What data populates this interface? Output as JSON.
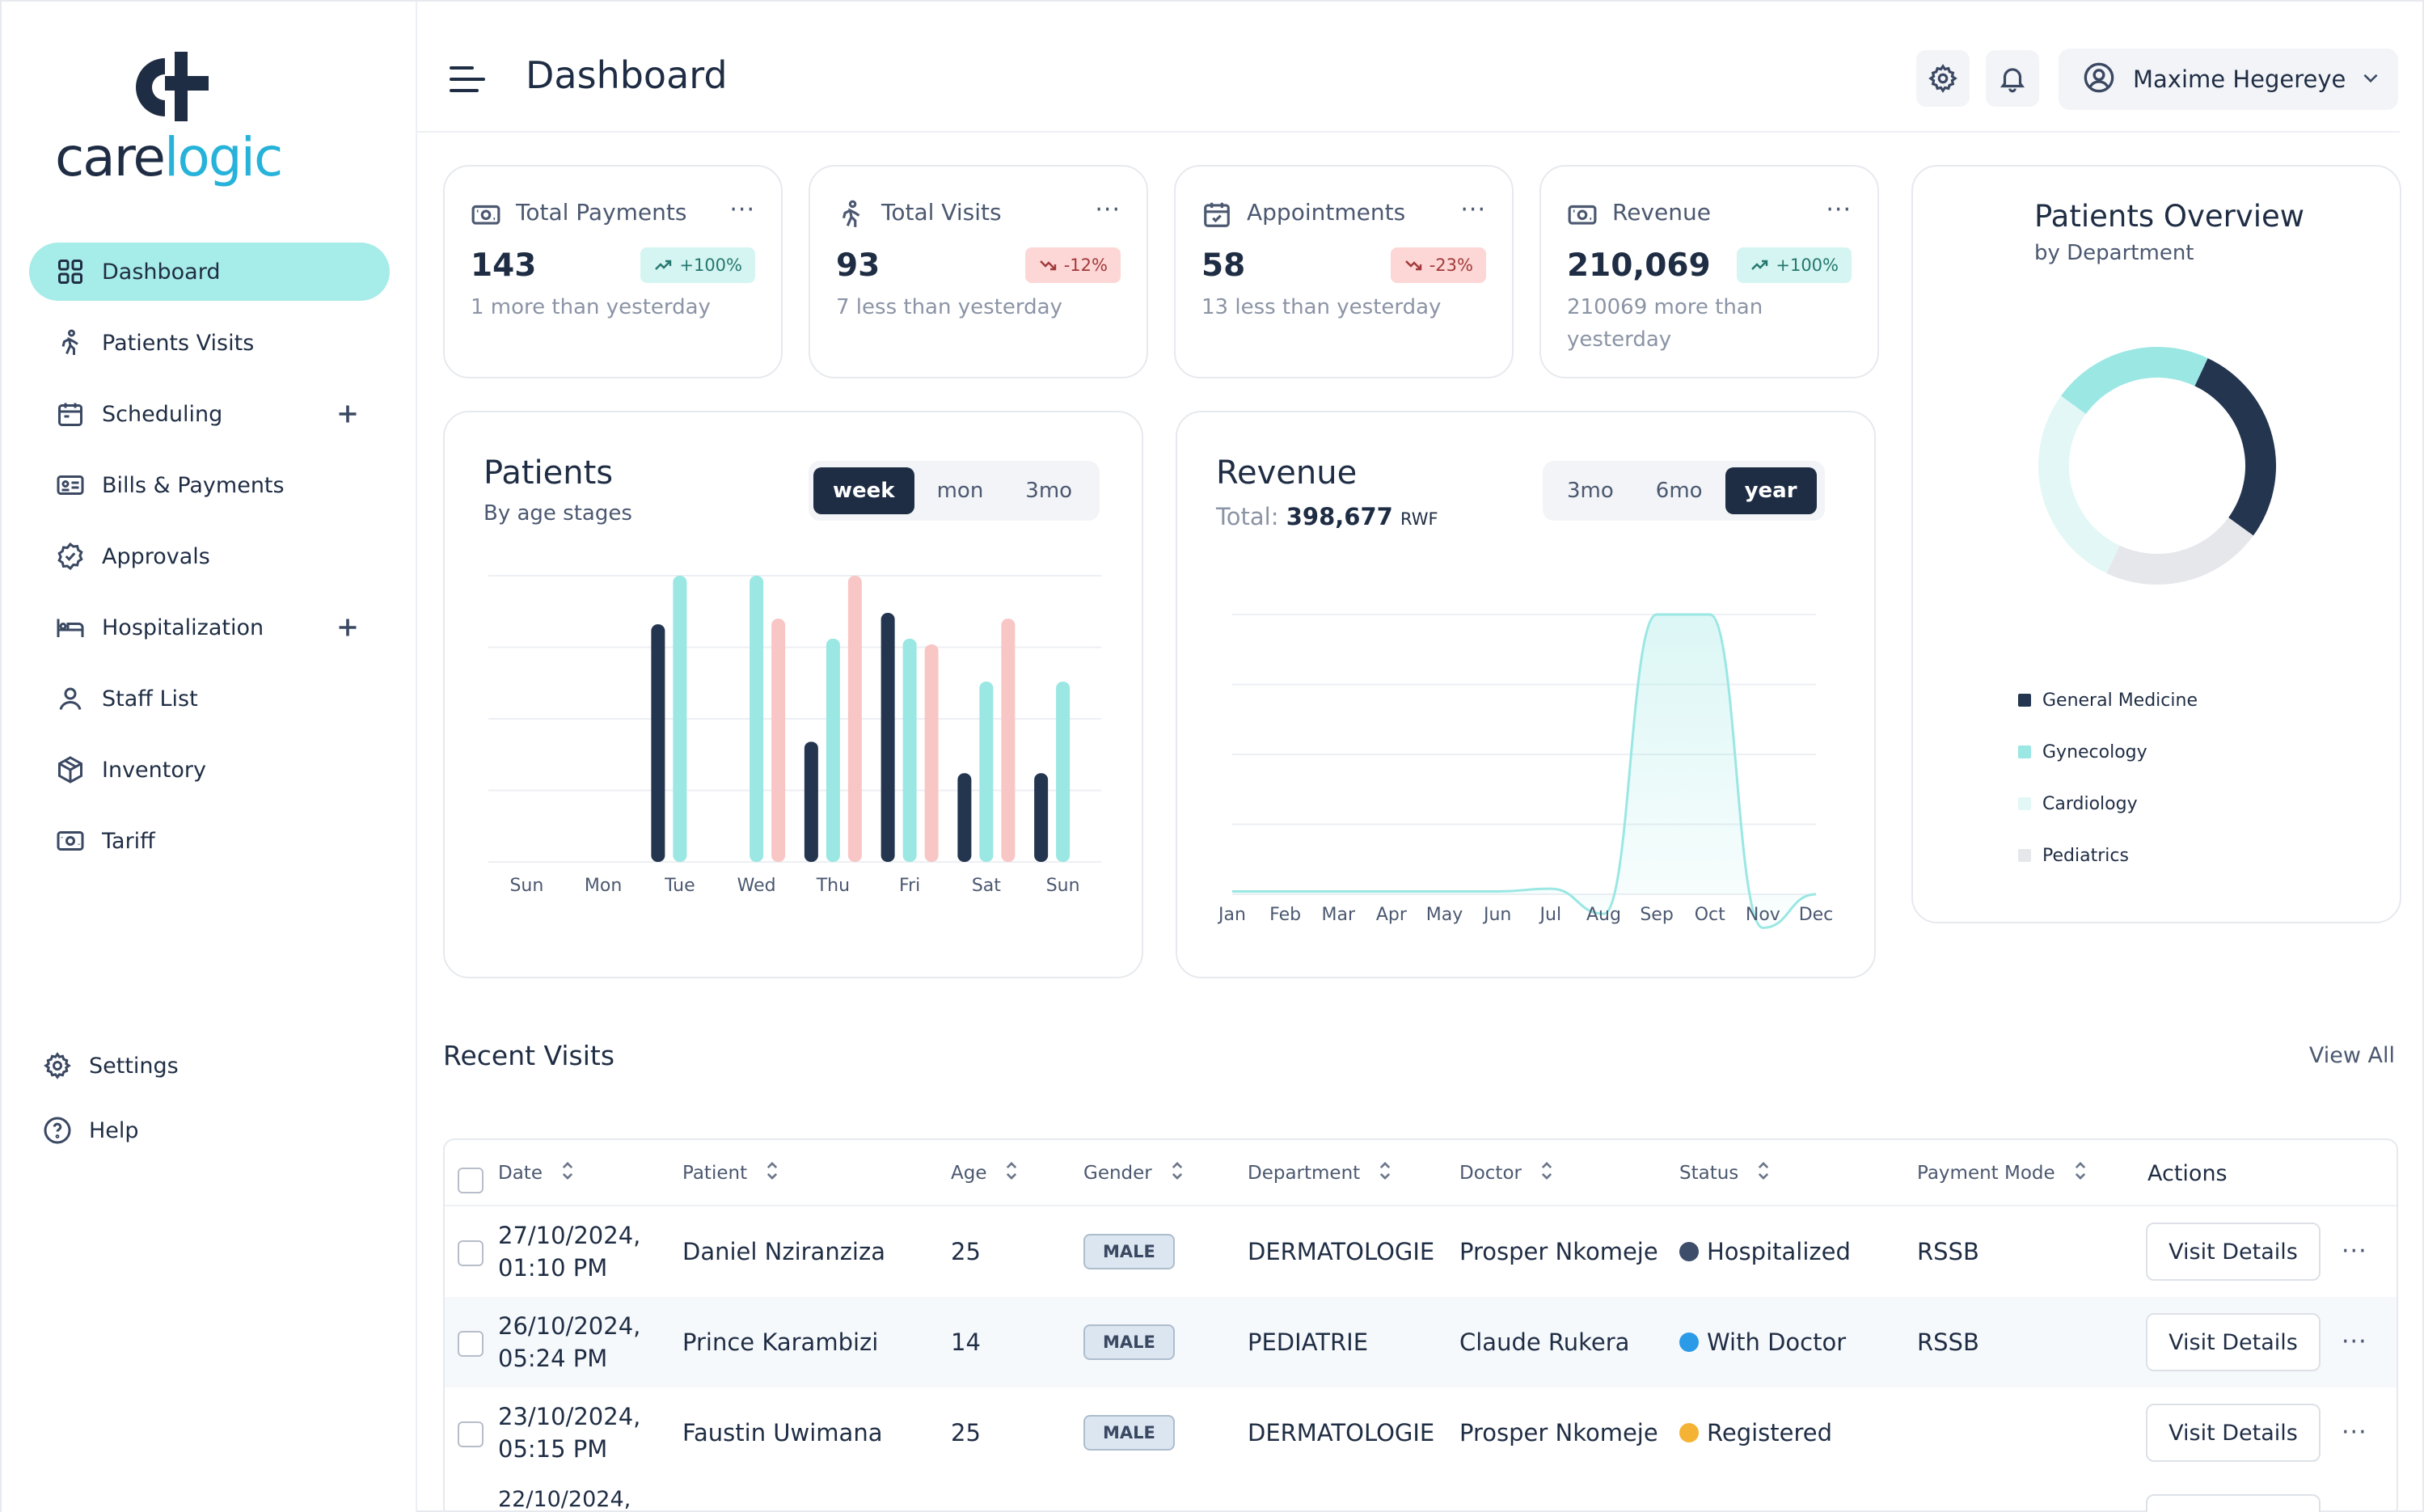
{
  "brand": {
    "name_part1": "care",
    "name_part2": "logic"
  },
  "sidebar": {
    "items": [
      {
        "label": "Dashboard",
        "icon": "grid-icon",
        "active": true,
        "expandable": false
      },
      {
        "label": "Patients Visits",
        "icon": "person-walking-icon",
        "active": false,
        "expandable": false
      },
      {
        "label": "Scheduling",
        "icon": "calendar-icon",
        "active": false,
        "expandable": true
      },
      {
        "label": "Bills & Payments",
        "icon": "receipt-icon",
        "active": false,
        "expandable": false
      },
      {
        "label": "Approvals",
        "icon": "badge-check-icon",
        "active": false,
        "expandable": false
      },
      {
        "label": "Hospitalization",
        "icon": "bed-icon",
        "active": false,
        "expandable": true
      },
      {
        "label": "Staff List",
        "icon": "user-icon",
        "active": false,
        "expandable": false
      },
      {
        "label": "Inventory",
        "icon": "box-icon",
        "active": false,
        "expandable": false
      },
      {
        "label": "Tariff",
        "icon": "cash-icon",
        "active": false,
        "expandable": false
      }
    ],
    "bottom": [
      {
        "label": "Settings",
        "icon": "gear-icon"
      },
      {
        "label": "Help",
        "icon": "help-circle-icon"
      }
    ]
  },
  "header": {
    "title": "Dashboard",
    "user_name": "Maxime Hegereye"
  },
  "stats": [
    {
      "title": "Total Payments",
      "value": "143",
      "badge": "+100%",
      "trend": "up",
      "sub": "1 more than yesterday"
    },
    {
      "title": "Total Visits",
      "value": "93",
      "badge": "-12%",
      "trend": "down",
      "sub": "7 less than yesterday"
    },
    {
      "title": "Appointments",
      "value": "58",
      "badge": "-23%",
      "trend": "down",
      "sub": "13 less than yesterday"
    },
    {
      "title": "Revenue",
      "value": "210,069",
      "badge": "+100%",
      "trend": "up",
      "sub": "210069 more than yesterday"
    }
  ],
  "stat_menu": "···",
  "patients_chart": {
    "title": "Patients",
    "subtitle": "By age stages",
    "ranges": [
      "week",
      "mon",
      "3mo"
    ],
    "selected_range": "week"
  },
  "revenue_chart": {
    "title": "Revenue",
    "total_label": "Total:",
    "total_value": "398,677",
    "total_unit": "RWF",
    "ranges": [
      "3mo",
      "6mo",
      "year"
    ],
    "selected_range": "year"
  },
  "overview": {
    "title": "Patients Overview",
    "subtitle": "by Department",
    "legend": [
      {
        "label": "General Medicine",
        "color": "#243550"
      },
      {
        "label": "Gynecology",
        "color": "#9ae7e3"
      },
      {
        "label": "Cardiology",
        "color": "#e3f8f6"
      },
      {
        "label": "Pediatrics",
        "color": "#e5e7eb"
      }
    ]
  },
  "chart_data": [
    {
      "type": "bar",
      "categories": [
        "Sun",
        "Mon",
        "Tue",
        "Wed",
        "Thu",
        "Fri",
        "Sat",
        "Sun"
      ],
      "ylim": [
        0,
        100
      ],
      "colors": [
        "#243550",
        "#9ae7e3",
        "#f9c6c6"
      ],
      "series": [
        {
          "values": [
            0,
            0,
            83,
            0,
            42,
            87,
            31,
            31
          ]
        },
        {
          "values": [
            0,
            0,
            100,
            100,
            78,
            78,
            63,
            63
          ]
        },
        {
          "values": [
            0,
            0,
            0,
            85,
            100,
            76,
            85,
            0
          ]
        }
      ]
    },
    {
      "type": "area",
      "categories": [
        "Jan",
        "Feb",
        "Mar",
        "Apr",
        "May",
        "Jun",
        "Jul",
        "Aug",
        "Sep",
        "Oct",
        "Nov",
        "Dec"
      ],
      "ylim": [
        0,
        100
      ],
      "color": "#9ae7e3",
      "values": [
        1,
        1,
        1,
        1,
        1,
        1,
        2,
        -7,
        100,
        100,
        -12,
        0
      ]
    },
    {
      "type": "pie",
      "labels": [
        "General Medicine",
        "Gynecology",
        "Cardiology",
        "Pediatrics"
      ],
      "values": [
        28,
        22,
        28,
        22
      ],
      "colors": [
        "#243550",
        "#9ae7e3",
        "#e3f8f6",
        "#e5e7eb"
      ]
    }
  ],
  "recent_visits": {
    "title": "Recent Visits",
    "view_all": "View All",
    "columns": [
      "Date",
      "Patient",
      "Age",
      "Gender",
      "Department",
      "Doctor",
      "Status",
      "Payment Mode",
      "Actions"
    ],
    "action_label": "Visit Details",
    "rows": [
      {
        "date": "27/10/2024,",
        "time": "01:10 PM",
        "patient": "Daniel Nziranziza",
        "age": "25",
        "gender": "MALE",
        "department": "DERMATOLOGIE",
        "doctor": "Prosper Nkomeje",
        "status": "Hospitalized",
        "status_color": "#3d4d6a",
        "payment": "RSSB"
      },
      {
        "date": "26/10/2024,",
        "time": "05:24 PM",
        "patient": "Prince Karambizi",
        "age": "14",
        "gender": "MALE",
        "department": "PEDIATRIE",
        "doctor": "Claude Rukera",
        "status": "With Doctor",
        "status_color": "#2b9be8",
        "payment": "RSSB"
      },
      {
        "date": "23/10/2024,",
        "time": "05:15 PM",
        "patient": "Faustin Uwimana",
        "age": "25",
        "gender": "MALE",
        "department": "DERMATOLOGIE",
        "doctor": "Prosper Nkomeje",
        "status": "Registered",
        "status_color": "#f5b335",
        "payment": ""
      }
    ],
    "partial_row_date": "22/10/2024,"
  }
}
